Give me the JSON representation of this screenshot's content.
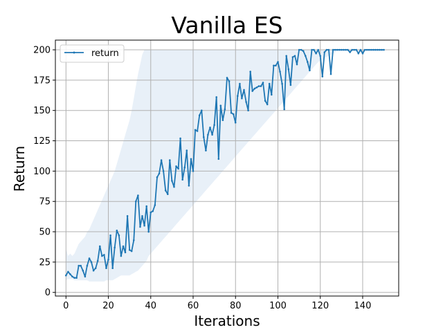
{
  "chart_data": {
    "type": "line",
    "title": "Vanilla ES",
    "xlabel": "Iterations",
    "ylabel": "Return",
    "xlim": [
      -5,
      157
    ],
    "ylim": [
      -3,
      208
    ],
    "xticks": [
      0,
      20,
      40,
      60,
      80,
      100,
      120,
      140
    ],
    "yticks": [
      0,
      25,
      50,
      75,
      100,
      125,
      150,
      175,
      200
    ],
    "grid": true,
    "legend_position": "upper-left",
    "series": [
      {
        "name": "return",
        "color": "#1f77b4",
        "x": [
          0,
          1,
          2,
          3,
          4,
          5,
          6,
          7,
          8,
          9,
          10,
          11,
          12,
          13,
          14,
          15,
          16,
          17,
          18,
          19,
          20,
          21,
          22,
          23,
          24,
          25,
          26,
          27,
          28,
          29,
          30,
          31,
          32,
          33,
          34,
          35,
          36,
          37,
          38,
          39,
          40,
          41,
          42,
          43,
          44,
          45,
          46,
          47,
          48,
          49,
          50,
          51,
          52,
          53,
          54,
          55,
          56,
          57,
          58,
          59,
          60,
          61,
          62,
          63,
          64,
          65,
          66,
          67,
          68,
          69,
          70,
          71,
          72,
          73,
          74,
          75,
          76,
          77,
          78,
          79,
          80,
          81,
          82,
          83,
          84,
          85,
          86,
          87,
          88,
          89,
          90,
          91,
          92,
          93,
          94,
          95,
          96,
          97,
          98,
          99,
          100,
          101,
          102,
          103,
          104,
          105,
          106,
          107,
          108,
          109,
          110,
          111,
          112,
          113,
          114,
          115,
          116,
          117,
          118,
          119,
          120,
          121,
          122,
          123,
          124,
          125,
          126,
          127,
          128,
          129,
          130,
          131,
          132,
          133,
          134,
          135,
          136,
          137,
          138,
          139,
          140,
          141,
          142,
          143,
          144,
          145,
          146,
          147,
          148,
          149,
          150
        ],
        "y": [
          14,
          17,
          15,
          13,
          12,
          12,
          22,
          22,
          18,
          13,
          22,
          28,
          25,
          18,
          20,
          26,
          38,
          30,
          31,
          20,
          27,
          47,
          20,
          37,
          51,
          47,
          30,
          38,
          33,
          63,
          35,
          34,
          43,
          75,
          80,
          54,
          63,
          55,
          71,
          50,
          66,
          67,
          72,
          95,
          98,
          109,
          100,
          84,
          81,
          109,
          92,
          87,
          104,
          102,
          127,
          93,
          103,
          117,
          88,
          110,
          100,
          134,
          133,
          146,
          150,
          128,
          117,
          130,
          136,
          130,
          138,
          161,
          110,
          154,
          142,
          151,
          177,
          174,
          148,
          147,
          140,
          162,
          172,
          160,
          167,
          157,
          150,
          182,
          166,
          168,
          169,
          170,
          170,
          173,
          158,
          155,
          172,
          163,
          187,
          187,
          190,
          182,
          172,
          151,
          195,
          184,
          171,
          194,
          195,
          188,
          200,
          200,
          199,
          195,
          190,
          183,
          200,
          200,
          197,
          200,
          195,
          178,
          198,
          200,
          200,
          180,
          200,
          200,
          200,
          200,
          200,
          200,
          200,
          200,
          198,
          200,
          200,
          200,
          197,
          200,
          197,
          200,
          200,
          200,
          200,
          200,
          200,
          200,
          200,
          200,
          200
        ],
        "band_lower": [
          10,
          11,
          11,
          11,
          10,
          10,
          10,
          10,
          10,
          10,
          10,
          9,
          9,
          9,
          9,
          9,
          9,
          9,
          9,
          10,
          10,
          10,
          10,
          11,
          12,
          13,
          14,
          14,
          14,
          14,
          14,
          15,
          16,
          17,
          18,
          20,
          22,
          24,
          26,
          30,
          32,
          34,
          36,
          38,
          40,
          42,
          44,
          46,
          48,
          50,
          52,
          54,
          56,
          58,
          60,
          62,
          64,
          66,
          68,
          70,
          72,
          74,
          76,
          78,
          80,
          82,
          84,
          86,
          88,
          90,
          92,
          94,
          96,
          98,
          100,
          102,
          104,
          106,
          108,
          110,
          112,
          114,
          116,
          118,
          120,
          122,
          124,
          126,
          128,
          130,
          132,
          134,
          136,
          138,
          140,
          142,
          144,
          146,
          148,
          150,
          152,
          154,
          156,
          158,
          160,
          162,
          164,
          166,
          168,
          170,
          172,
          174,
          176,
          178,
          180,
          182,
          184,
          186,
          188,
          190,
          191,
          192,
          193,
          194,
          195,
          196,
          197,
          198,
          199,
          199,
          199,
          199,
          199,
          199,
          199,
          199,
          199,
          199,
          199,
          199,
          199,
          199,
          199,
          199,
          199,
          199,
          199,
          199,
          199,
          199,
          199
        ],
        "band_upper": [
          36,
          30,
          32,
          30,
          32,
          36,
          40,
          42,
          44,
          46,
          50,
          52,
          56,
          60,
          64,
          68,
          72,
          76,
          80,
          84,
          88,
          92,
          96,
          100,
          106,
          112,
          118,
          124,
          130,
          136,
          142,
          150,
          160,
          170,
          180,
          188,
          196,
          200,
          200,
          200,
          200,
          200,
          200,
          200,
          200,
          200,
          200,
          200,
          200,
          200,
          200,
          200,
          200,
          200,
          200,
          200,
          200,
          200,
          200,
          200,
          200,
          200,
          200,
          200,
          200,
          200,
          200,
          200,
          200,
          200,
          200,
          200,
          200,
          200,
          200,
          200,
          200,
          200,
          200,
          200,
          200,
          200,
          200,
          200,
          200,
          200,
          200,
          200,
          200,
          200,
          200,
          200,
          200,
          200,
          200,
          200,
          200,
          200,
          200,
          200,
          200,
          200,
          200,
          200,
          200,
          200,
          200,
          200,
          200,
          200,
          200,
          200,
          200,
          200,
          200,
          200,
          200,
          200,
          200,
          200,
          200,
          200,
          200,
          200,
          200,
          200,
          200,
          200,
          200,
          200,
          200,
          200,
          200,
          200,
          200,
          200,
          200,
          200,
          200,
          200,
          200,
          200,
          200,
          200,
          200,
          200,
          200,
          200,
          200,
          200,
          200
        ],
        "band_color": "#e8f0f8"
      }
    ]
  }
}
